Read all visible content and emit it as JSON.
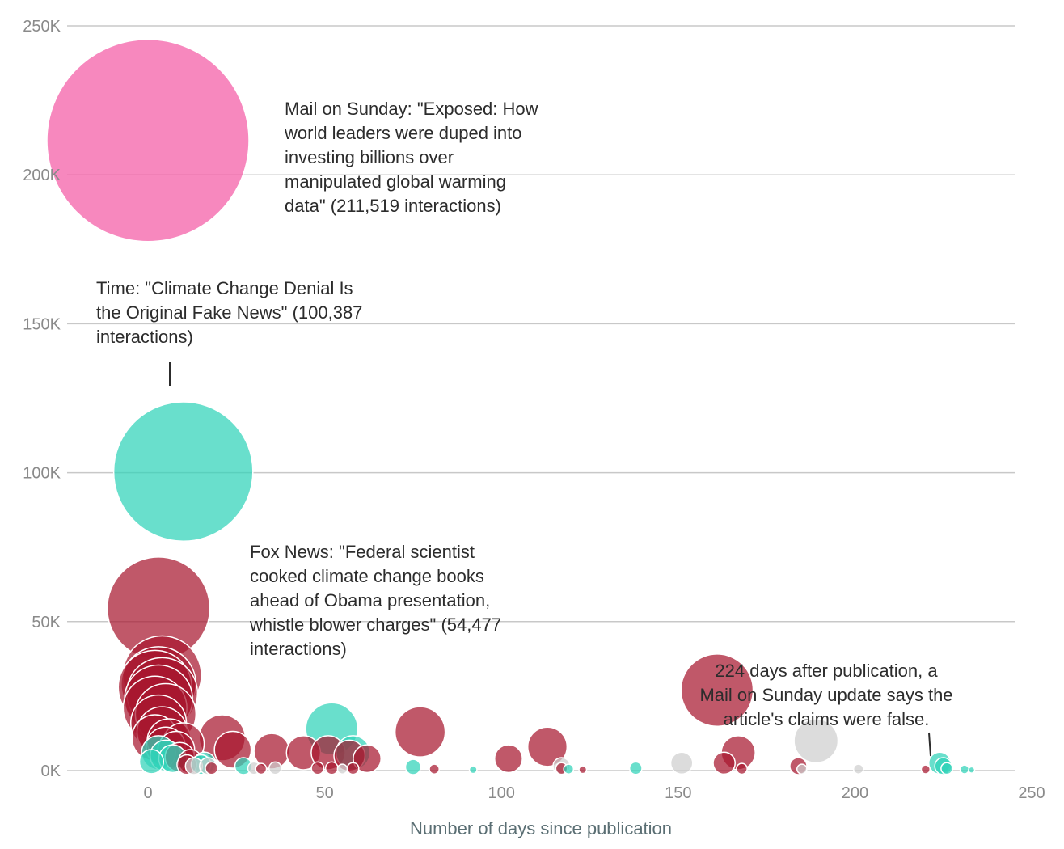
{
  "chart_data": {
    "type": "scatter",
    "title": "",
    "xlabel": "Number of days since publication",
    "ylabel": "",
    "xlim": [
      -22,
      250
    ],
    "ylim": [
      0,
      250000
    ],
    "xticks": [
      0,
      50,
      100,
      150,
      200,
      250
    ],
    "xtick_labels": [
      "0",
      "50",
      "100",
      "150",
      "200",
      "250"
    ],
    "yticks": [
      0,
      50000,
      100000,
      150000,
      200000,
      250000
    ],
    "ytick_labels": [
      "0K",
      "50K",
      "100K",
      "150K",
      "200K",
      "250K"
    ],
    "grid": true,
    "colors": {
      "pink": "#f45aa5",
      "teal": "#2fd3b9",
      "crimson": "#a8172f",
      "grey": "#cfcfcf",
      "axis_text": "#8a8a8a",
      "xlabel_text": "#5a6e73",
      "annotation_text": "#2c2c2c"
    },
    "points": [
      {
        "x": 0,
        "y": 211519,
        "c": "pink"
      },
      {
        "x": 10,
        "y": 100387,
        "c": "teal"
      },
      {
        "x": 3,
        "y": 54477,
        "c": "crimson"
      },
      {
        "x": 4,
        "y": 32000,
        "c": "crimson"
      },
      {
        "x": 3,
        "y": 29000,
        "c": "crimson"
      },
      {
        "x": 2,
        "y": 28000,
        "c": "crimson"
      },
      {
        "x": 4,
        "y": 26000,
        "c": "crimson"
      },
      {
        "x": 3,
        "y": 24000,
        "c": "crimson"
      },
      {
        "x": 2,
        "y": 21000,
        "c": "crimson"
      },
      {
        "x": 5,
        "y": 19000,
        "c": "crimson"
      },
      {
        "x": 3,
        "y": 16000,
        "c": "crimson"
      },
      {
        "x": 4,
        "y": 13000,
        "c": "crimson"
      },
      {
        "x": 2,
        "y": 11000,
        "c": "crimson"
      },
      {
        "x": 6,
        "y": 10000,
        "c": "crimson"
      },
      {
        "x": 5,
        "y": 8000,
        "c": "crimson"
      },
      {
        "x": 10,
        "y": 9000,
        "c": "crimson"
      },
      {
        "x": 8,
        "y": 7000,
        "c": "crimson"
      },
      {
        "x": 3,
        "y": 6000,
        "c": "teal"
      },
      {
        "x": 5,
        "y": 5000,
        "c": "teal"
      },
      {
        "x": 7,
        "y": 4000,
        "c": "teal"
      },
      {
        "x": 1,
        "y": 3000,
        "c": "teal"
      },
      {
        "x": 9,
        "y": 4500,
        "c": "crimson"
      },
      {
        "x": 12,
        "y": 3000,
        "c": "crimson"
      },
      {
        "x": 11,
        "y": 2000,
        "c": "crimson"
      },
      {
        "x": 13,
        "y": 1500,
        "c": "grey"
      },
      {
        "x": 15,
        "y": 2000,
        "c": "teal"
      },
      {
        "x": 16,
        "y": 2500,
        "c": "teal"
      },
      {
        "x": 17,
        "y": 1500,
        "c": "grey"
      },
      {
        "x": 18,
        "y": 800,
        "c": "crimson"
      },
      {
        "x": 21,
        "y": 11000,
        "c": "crimson"
      },
      {
        "x": 24,
        "y": 7000,
        "c": "crimson"
      },
      {
        "x": 27,
        "y": 1500,
        "c": "teal"
      },
      {
        "x": 30,
        "y": 800,
        "c": "grey"
      },
      {
        "x": 32,
        "y": 600,
        "c": "crimson"
      },
      {
        "x": 35,
        "y": 6500,
        "c": "crimson"
      },
      {
        "x": 36,
        "y": 800,
        "c": "grey"
      },
      {
        "x": 44,
        "y": 6000,
        "c": "crimson"
      },
      {
        "x": 48,
        "y": 800,
        "c": "crimson"
      },
      {
        "x": 52,
        "y": 14000,
        "c": "teal"
      },
      {
        "x": 51,
        "y": 6000,
        "c": "crimson"
      },
      {
        "x": 52,
        "y": 800,
        "c": "crimson"
      },
      {
        "x": 55,
        "y": 500,
        "c": "grey"
      },
      {
        "x": 58,
        "y": 6000,
        "c": "teal"
      },
      {
        "x": 57,
        "y": 5000,
        "c": "crimson"
      },
      {
        "x": 62,
        "y": 4000,
        "c": "crimson"
      },
      {
        "x": 58,
        "y": 700,
        "c": "crimson"
      },
      {
        "x": 75,
        "y": 1200,
        "c": "teal"
      },
      {
        "x": 77,
        "y": 13000,
        "c": "crimson"
      },
      {
        "x": 81,
        "y": 500,
        "c": "crimson"
      },
      {
        "x": 92,
        "y": 300,
        "c": "teal"
      },
      {
        "x": 102,
        "y": 4000,
        "c": "crimson"
      },
      {
        "x": 113,
        "y": 8000,
        "c": "crimson"
      },
      {
        "x": 117,
        "y": 1500,
        "c": "grey"
      },
      {
        "x": 117,
        "y": 700,
        "c": "crimson"
      },
      {
        "x": 119,
        "y": 500,
        "c": "teal"
      },
      {
        "x": 123,
        "y": 300,
        "c": "crimson"
      },
      {
        "x": 138,
        "y": 800,
        "c": "teal"
      },
      {
        "x": 151,
        "y": 2500,
        "c": "grey"
      },
      {
        "x": 161,
        "y": 27000,
        "c": "crimson"
      },
      {
        "x": 167,
        "y": 6000,
        "c": "crimson"
      },
      {
        "x": 163,
        "y": 2500,
        "c": "crimson"
      },
      {
        "x": 168,
        "y": 600,
        "c": "crimson"
      },
      {
        "x": 184,
        "y": 1500,
        "c": "crimson"
      },
      {
        "x": 185,
        "y": 500,
        "c": "grey"
      },
      {
        "x": 189,
        "y": 10000,
        "c": "grey"
      },
      {
        "x": 201,
        "y": 500,
        "c": "grey"
      },
      {
        "x": 220,
        "y": 400,
        "c": "crimson"
      },
      {
        "x": 224,
        "y": 2500,
        "c": "teal"
      },
      {
        "x": 225,
        "y": 1500,
        "c": "teal"
      },
      {
        "x": 226,
        "y": 700,
        "c": "teal"
      },
      {
        "x": 231,
        "y": 400,
        "c": "teal"
      },
      {
        "x": 233,
        "y": 200,
        "c": "teal"
      }
    ],
    "annotations": [
      {
        "id": "mail",
        "lines": [
          "Mail on Sunday: \"Exposed: How",
          "world leaders were duped into",
          "investing billions over",
          "manipulated global warming",
          "data\" (211,519 interactions)"
        ]
      },
      {
        "id": "time",
        "lines": [
          "Time: \"Climate Change Denial Is",
          "the Original Fake News\" (100,387",
          "interactions)"
        ]
      },
      {
        "id": "fox",
        "lines": [
          "Fox News: \"Federal scientist",
          "cooked climate change books",
          "ahead of Obama presentation,",
          "whistle blower charges\" (54,477",
          "interactions)"
        ]
      },
      {
        "id": "update",
        "lines": [
          "224 days after publication, a",
          "Mail on Sunday update says the",
          "article's claims were false."
        ]
      }
    ]
  }
}
